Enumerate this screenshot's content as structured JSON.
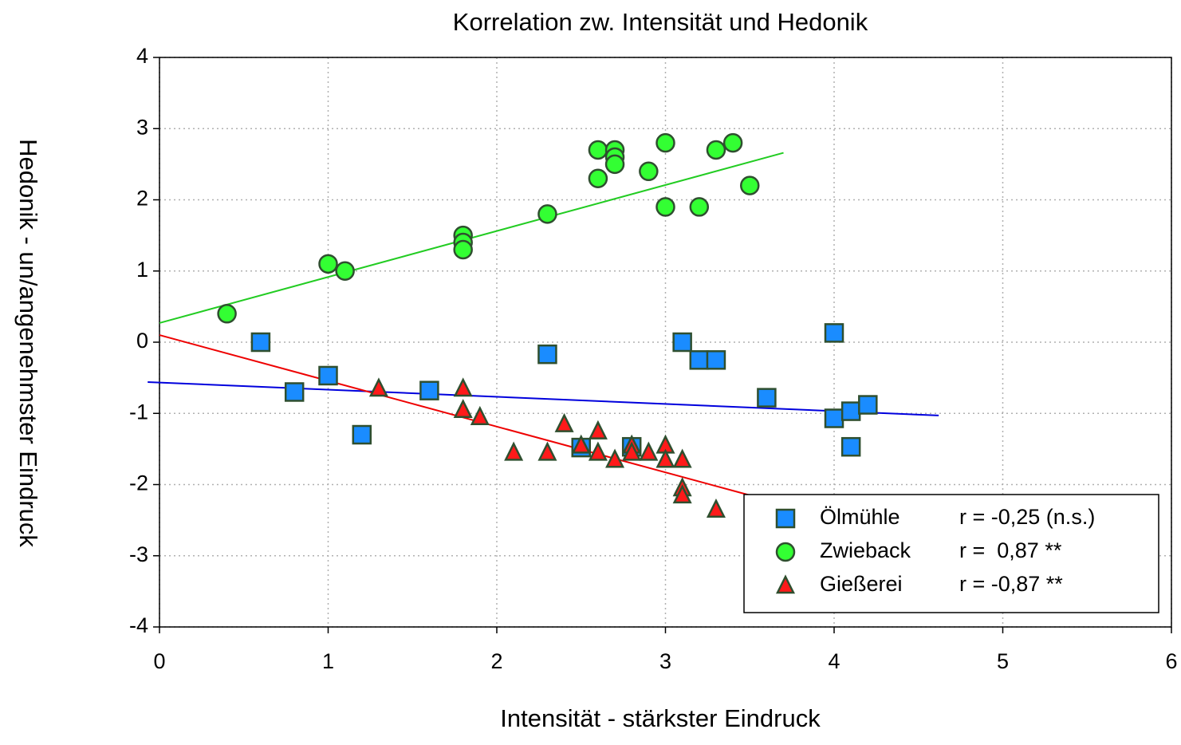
{
  "chart_data": {
    "type": "scatter",
    "title": "Korrelation zw. Intensität und Hedonik",
    "x_label": "Intensität - stärkster Eindruck",
    "y_label": "Hedonik - un/angenehmster Eindruck",
    "xlim": [
      0,
      6
    ],
    "ylim": [
      -4,
      4
    ],
    "xticks": [
      0,
      1,
      2,
      3,
      4,
      5,
      6
    ],
    "yticks": [
      -4,
      -3,
      -2,
      -1,
      0,
      1,
      2,
      3,
      4
    ],
    "grid": true,
    "legend": "lower-right",
    "series": [
      {
        "name": "Ölmühle",
        "stat": "r = -0,25 (n.s.)",
        "marker": "square",
        "color": "#1a8cff",
        "line_color": "#0000dd",
        "x": [
          0.6,
          0.8,
          1.0,
          1.2,
          1.6,
          2.3,
          2.5,
          2.8,
          3.1,
          3.2,
          3.3,
          3.6,
          4.0,
          4.0,
          4.1,
          4.1,
          4.2
        ],
        "values": [
          0,
          -0.7,
          -0.47,
          -1.3,
          -0.68,
          -0.17,
          -1.48,
          -1.47,
          0,
          -0.25,
          -0.25,
          -0.78,
          0.13,
          -1.07,
          -0.97,
          -1.47,
          -0.88
        ],
        "trendline": {
          "x": [
            -0.07,
            4.62
          ],
          "y": [
            -0.56,
            -1.03
          ]
        }
      },
      {
        "name": "Zwieback",
        "stat": "r =  0,87 **",
        "marker": "circle",
        "color": "#33ff33",
        "line_color": "#22cc22",
        "x": [
          0.4,
          1.0,
          1.1,
          1.8,
          1.8,
          1.8,
          2.3,
          2.6,
          2.6,
          2.7,
          2.7,
          2.7,
          2.9,
          3.0,
          3.0,
          3.2,
          3.3,
          3.4,
          3.5
        ],
        "values": [
          0.4,
          1.1,
          1.0,
          1.5,
          1.4,
          1.3,
          1.8,
          2.7,
          2.3,
          2.7,
          2.6,
          2.5,
          2.4,
          2.8,
          1.9,
          1.9,
          2.7,
          2.8,
          2.2
        ],
        "trendline": {
          "x": [
            0,
            3.7
          ],
          "y": [
            0.27,
            2.66
          ]
        }
      },
      {
        "name": "Gießerei",
        "stat": "r = -0,87 **",
        "marker": "triangle",
        "color": "#ff1a1a",
        "line_color": "#ee0000",
        "x": [
          1.3,
          1.8,
          1.8,
          1.9,
          2.1,
          2.3,
          2.4,
          2.5,
          2.6,
          2.6,
          2.7,
          2.8,
          2.8,
          2.9,
          3.0,
          3.0,
          3.1,
          3.1,
          3.1,
          3.3
        ],
        "values": [
          -0.65,
          -0.65,
          -0.95,
          -1.05,
          -1.55,
          -1.55,
          -1.15,
          -1.45,
          -1.25,
          -1.55,
          -1.65,
          -1.45,
          -1.55,
          -1.55,
          -1.45,
          -1.65,
          -1.65,
          -2.05,
          -2.15,
          -2.35
        ],
        "trendline": {
          "x": [
            0,
            3.5
          ],
          "y": [
            0.1,
            -2.15
          ]
        }
      }
    ]
  }
}
